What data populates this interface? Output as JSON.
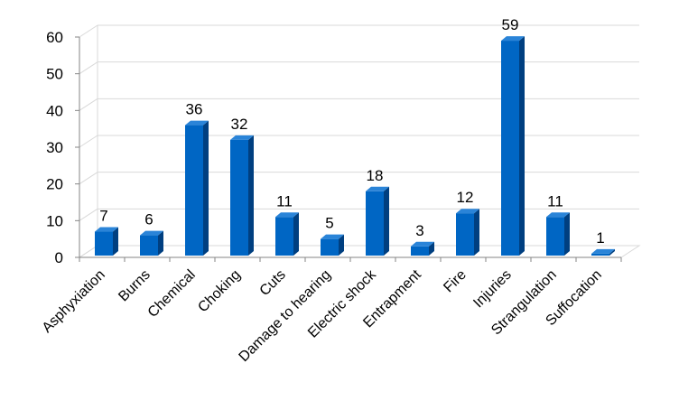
{
  "chart_data": {
    "type": "bar",
    "style": "3d-column",
    "categories": [
      "Asphyxiation",
      "Burns",
      "Chemical",
      "Choking",
      "Cuts",
      "Damage to hearing",
      "Electric shock",
      "Entrapment",
      "Fire",
      "Injuries",
      "Strangulation",
      "Suffocation"
    ],
    "values": [
      7,
      6,
      36,
      32,
      11,
      5,
      18,
      3,
      12,
      59,
      11,
      1
    ],
    "data_labels": [
      "7",
      "6",
      "36",
      "32",
      "11",
      "5",
      "18",
      "3",
      "12",
      "59",
      "11",
      "1"
    ],
    "title": "",
    "xlabel": "",
    "ylabel": "",
    "ylim": [
      0,
      60
    ],
    "yticks": [
      0,
      10,
      20,
      30,
      40,
      50,
      60
    ],
    "ytick_labels": [
      "0",
      "10",
      "20",
      "30",
      "40",
      "50",
      "60"
    ],
    "grid": true,
    "legend": "none",
    "colors": {
      "bar_front": "#0066c4",
      "bar_side": "#003f80",
      "bar_top": "#2a84d8",
      "grid": "#d9d9d9",
      "axis": "#868686"
    }
  }
}
